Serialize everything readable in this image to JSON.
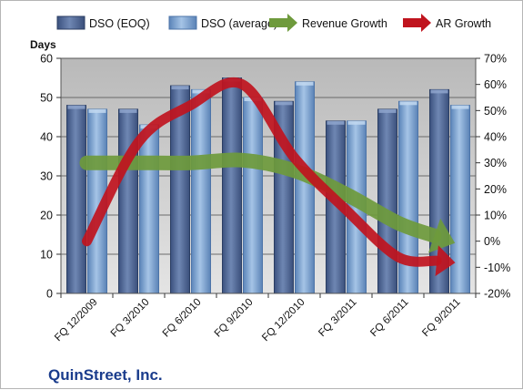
{
  "chart_data": {
    "type": "bar",
    "categories": [
      "FQ 12/2009",
      "FQ 3/2010",
      "FQ 6/2010",
      "FQ 9/2010",
      "FQ 12/2010",
      "FQ 3/2011",
      "FQ 6/2011",
      "FQ 9/2011"
    ],
    "series": [
      {
        "name": "DSO (EOQ)",
        "type": "bar",
        "axis": "left",
        "values": [
          48,
          47,
          53,
          55,
          49,
          44,
          47,
          52
        ]
      },
      {
        "name": "DSO (average)",
        "type": "bar",
        "axis": "left",
        "values": [
          47,
          43,
          52,
          50,
          54,
          44,
          49,
          48
        ]
      },
      {
        "name": "Revenue Growth",
        "type": "arrow-line",
        "axis": "right",
        "values": [
          30,
          30,
          30,
          31,
          27,
          18,
          7,
          0
        ]
      },
      {
        "name": "AR Growth",
        "type": "arrow-line",
        "axis": "right",
        "values": [
          0,
          38,
          52,
          60,
          32,
          12,
          -6,
          -8
        ]
      }
    ],
    "ylabel": "Days",
    "ylim": [
      0,
      60
    ],
    "yticks": [
      "0",
      "10",
      "20",
      "30",
      "40",
      "50",
      "60"
    ],
    "y2lim": [
      -20,
      70
    ],
    "y2ticks": [
      "-20%",
      "-10%",
      "0%",
      "10%",
      "20%",
      "30%",
      "40%",
      "50%",
      "60%",
      "70%"
    ],
    "grid": true,
    "legend_position": "top",
    "company": "QuinStreet, Inc.",
    "colors": {
      "eoq_bar": "#4a6396",
      "avg_bar": "#6f97c9",
      "revenue_growth": "#6e9a3c",
      "ar_growth": "#c0141e",
      "plot_background": "#c8c8c8"
    }
  }
}
